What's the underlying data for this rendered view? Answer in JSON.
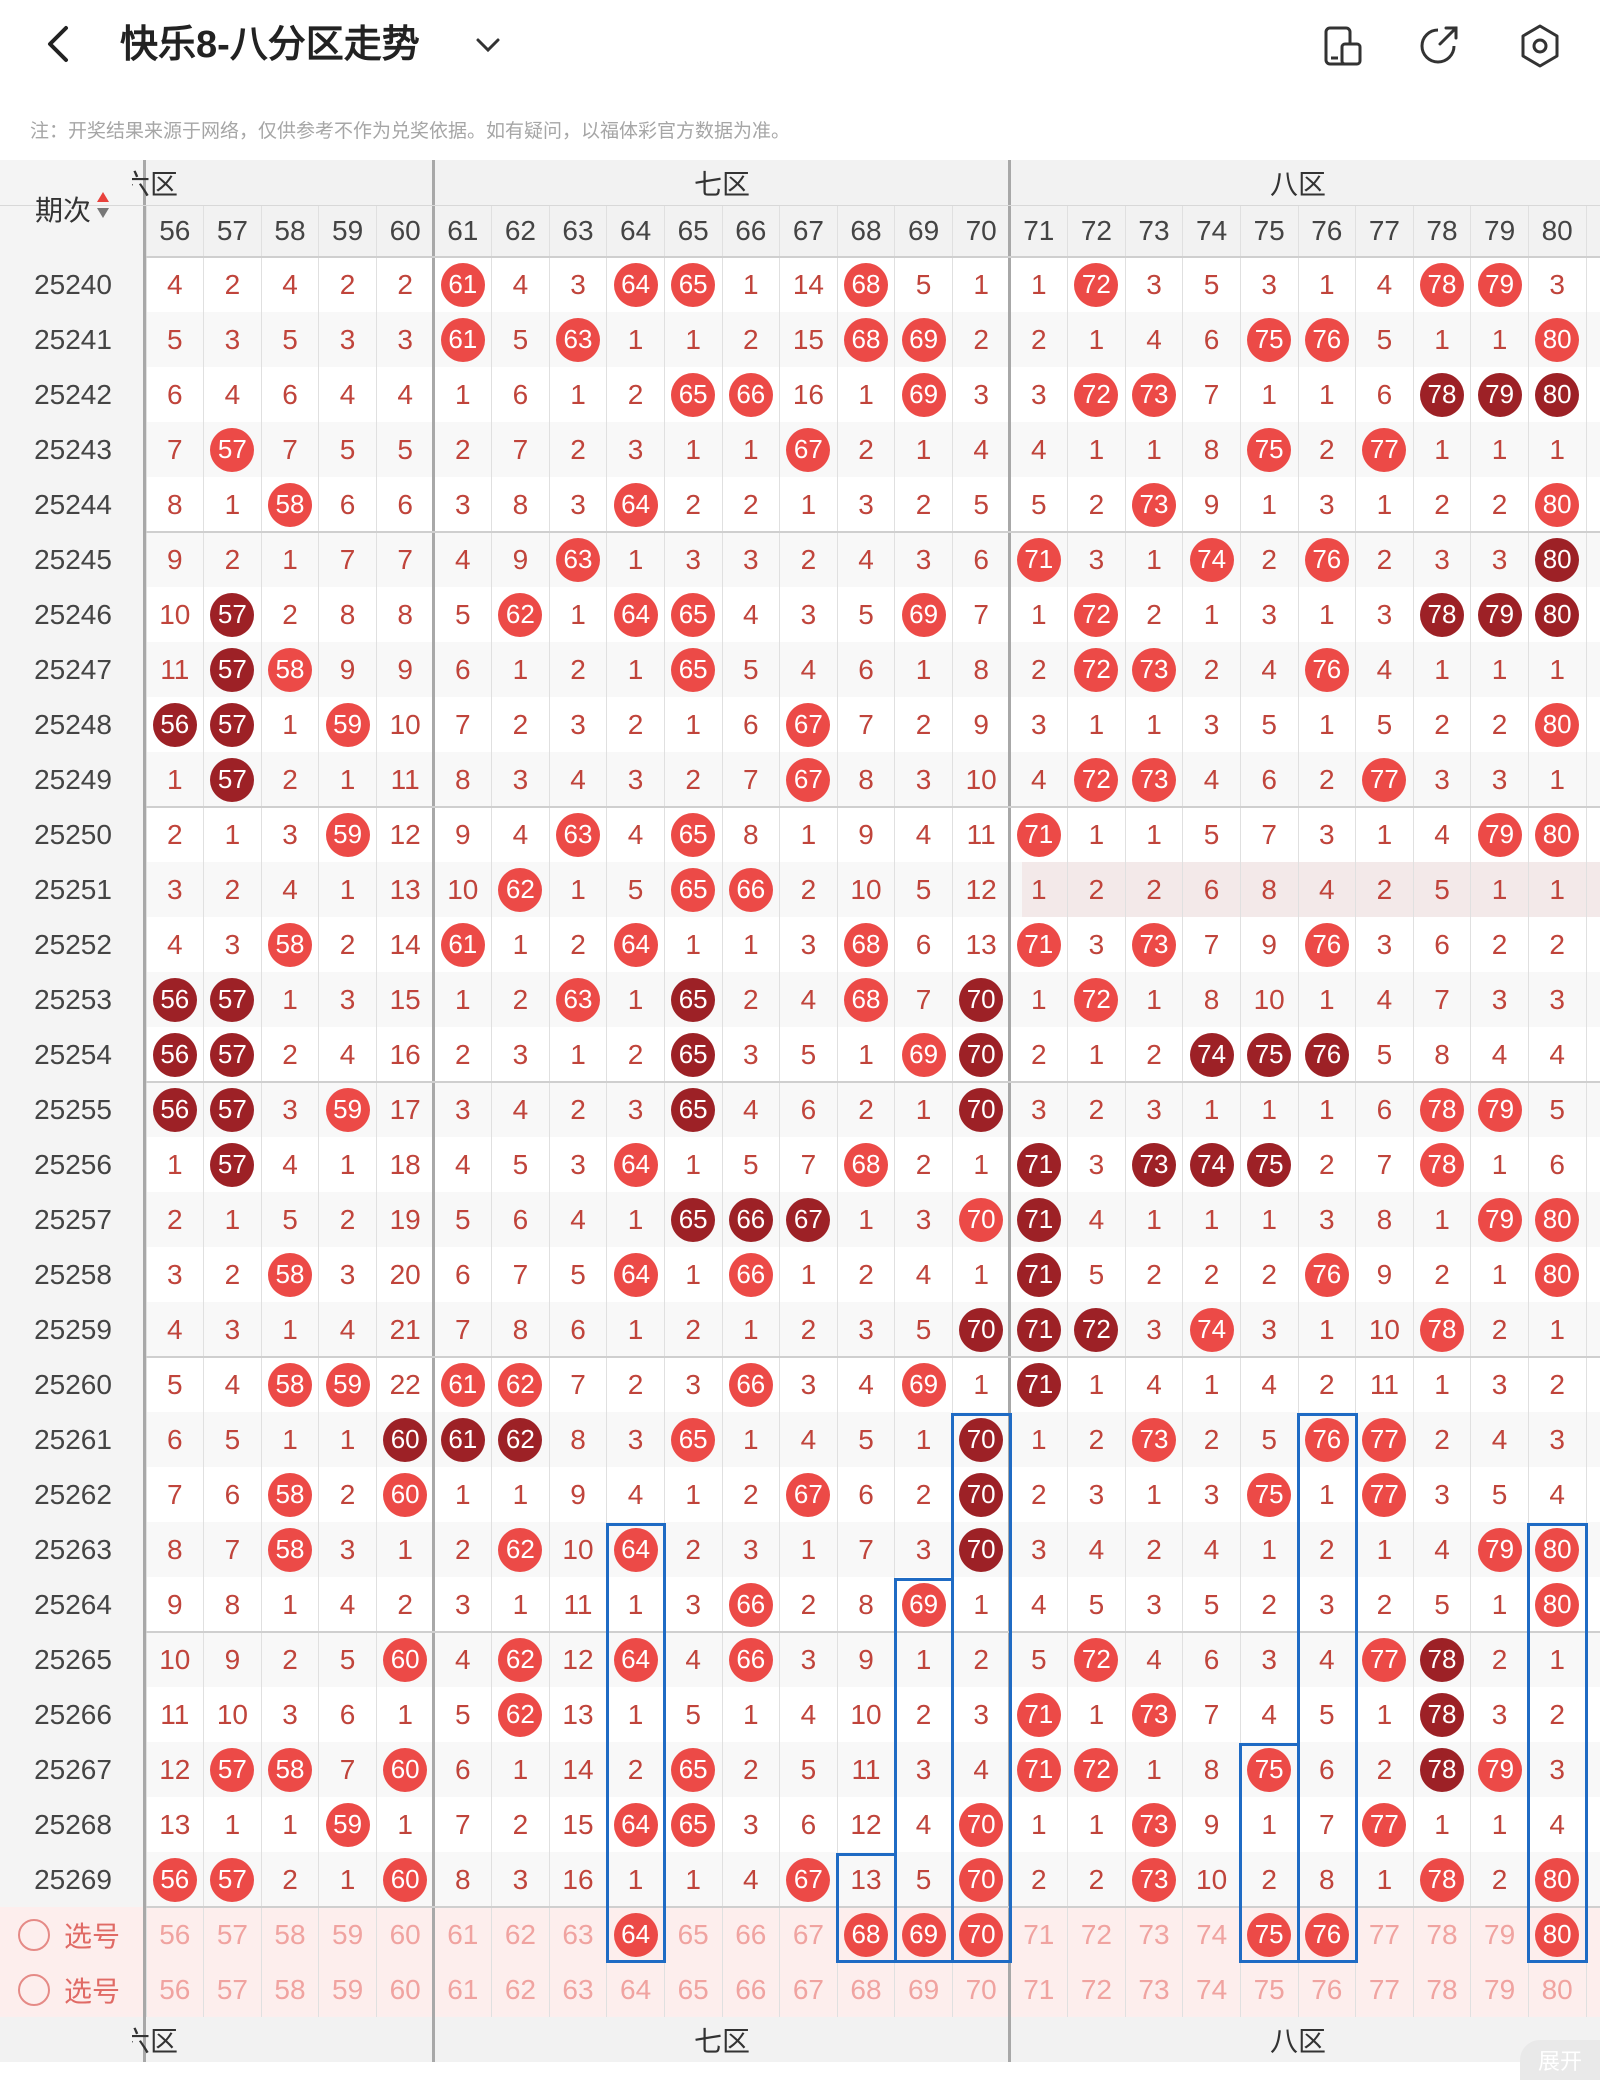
{
  "header": {
    "title": "快乐8-八分区走势",
    "back_icon": "back-arrow-icon",
    "dropdown_icon": "chevron-down-icon",
    "icons": [
      "device-toggle-icon",
      "share-icon",
      "settings-icon"
    ]
  },
  "note": "注：开奖结果来源于网络，仅供参考不作为兑奖依据。如有疑问，以福体彩官方数据为准。",
  "colors": {
    "red_ball": "#ec4a47",
    "dark_ball": "#9d2126",
    "miss_text": "#c0443b",
    "highlight": "#1f6bc4",
    "select_bg": "#fdeeed"
  },
  "table": {
    "period_header": "期次",
    "zones_top": [
      {
        "label": "六区",
        "shown": "六区"
      },
      {
        "label": "七区"
      },
      {
        "label": "八区"
      }
    ],
    "zone_top_texts": [
      "六区",
      "七区",
      "八区"
    ],
    "zone_bottom_texts": [
      "六区",
      "七区",
      "八区"
    ],
    "columns": [
      "56",
      "57",
      "58",
      "59",
      "60",
      "61",
      "62",
      "63",
      "64",
      "65",
      "66",
      "67",
      "68",
      "69",
      "70",
      "71",
      "72",
      "73",
      "74",
      "75",
      "76",
      "77",
      "78",
      "79",
      "80"
    ],
    "rows": [
      {
        "period": "25240",
        "cells": [
          "4",
          "2",
          "4",
          "2",
          "2",
          "61r",
          "4",
          "3",
          "64r",
          "65r",
          "1",
          "14",
          "68r",
          "5",
          "1",
          "1",
          "72r",
          "3",
          "5",
          "3",
          "1",
          "4",
          "78r",
          "79r",
          "3"
        ]
      },
      {
        "period": "25241",
        "cells": [
          "5",
          "3",
          "5",
          "3",
          "3",
          "61r",
          "5",
          "63r",
          "1",
          "1",
          "2",
          "15",
          "68r",
          "69r",
          "2",
          "2",
          "1",
          "4",
          "6",
          "75r",
          "76r",
          "5",
          "1",
          "1",
          "80r"
        ]
      },
      {
        "period": "25242",
        "cells": [
          "6",
          "4",
          "6",
          "4",
          "4",
          "1",
          "6",
          "1",
          "2",
          "65r",
          "66r",
          "16",
          "1",
          "69r",
          "3",
          "3",
          "72r",
          "73r",
          "7",
          "1",
          "1",
          "6",
          "78d",
          "79d",
          "80d"
        ]
      },
      {
        "period": "25243",
        "cells": [
          "7",
          "57r",
          "7",
          "5",
          "5",
          "2",
          "7",
          "2",
          "3",
          "1",
          "1",
          "67r",
          "2",
          "1",
          "4",
          "4",
          "1",
          "1",
          "8",
          "75r",
          "2",
          "77r",
          "1",
          "1",
          "1"
        ]
      },
      {
        "period": "25244",
        "cells": [
          "8",
          "1",
          "58r",
          "6",
          "6",
          "3",
          "8",
          "3",
          "64r",
          "2",
          "2",
          "1",
          "3",
          "2",
          "5",
          "5",
          "2",
          "73r",
          "9",
          "1",
          "3",
          "1",
          "2",
          "2",
          "80r"
        ]
      },
      {
        "period": "25245",
        "cells": [
          "9",
          "2",
          "1",
          "7",
          "7",
          "4",
          "9",
          "63r",
          "1",
          "3",
          "3",
          "2",
          "4",
          "3",
          "6",
          "71r",
          "3",
          "1",
          "74r",
          "2",
          "76r",
          "2",
          "3",
          "3",
          "80d"
        ]
      },
      {
        "period": "25246",
        "cells": [
          "10",
          "57d",
          "2",
          "8",
          "8",
          "5",
          "62r",
          "1",
          "64r",
          "65r",
          "4",
          "3",
          "5",
          "69r",
          "7",
          "1",
          "72r",
          "2",
          "1",
          "3",
          "1",
          "3",
          "78d",
          "79d",
          "80d"
        ]
      },
      {
        "period": "25247",
        "cells": [
          "11",
          "57d",
          "58r",
          "9",
          "9",
          "6",
          "1",
          "2",
          "1",
          "65r",
          "5",
          "4",
          "6",
          "1",
          "8",
          "2",
          "72r",
          "73r",
          "2",
          "4",
          "76r",
          "4",
          "1",
          "1",
          "1"
        ]
      },
      {
        "period": "25248",
        "cells": [
          "56d",
          "57d",
          "1",
          "59r",
          "10",
          "7",
          "2",
          "3",
          "2",
          "1",
          "6",
          "67r",
          "7",
          "2",
          "9",
          "3",
          "1",
          "1",
          "3",
          "5",
          "1",
          "5",
          "2",
          "2",
          "80r"
        ]
      },
      {
        "period": "25249",
        "cells": [
          "1",
          "57d",
          "2",
          "1",
          "11",
          "8",
          "3",
          "4",
          "3",
          "2",
          "7",
          "67r",
          "8",
          "3",
          "10",
          "4",
          "72r",
          "73r",
          "4",
          "6",
          "2",
          "77r",
          "3",
          "3",
          "1"
        ]
      },
      {
        "period": "25250",
        "cells": [
          "2",
          "1",
          "3",
          "59r",
          "12",
          "9",
          "4",
          "63r",
          "4",
          "65r",
          "8",
          "1",
          "9",
          "4",
          "11",
          "71r",
          "1",
          "1",
          "5",
          "7",
          "3",
          "1",
          "4",
          "79r",
          "80r"
        ]
      },
      {
        "period": "25251",
        "cells": [
          "3",
          "2",
          "4",
          "1",
          "13",
          "10",
          "62r",
          "1",
          "5",
          "65r",
          "66r",
          "2",
          "10",
          "5",
          "12",
          "1",
          "2",
          "2",
          "6",
          "8",
          "4",
          "2",
          "5",
          "1",
          "1"
        ]
      },
      {
        "period": "25252",
        "cells": [
          "4",
          "3",
          "58r",
          "2",
          "14",
          "61r",
          "1",
          "2",
          "64r",
          "1",
          "1",
          "3",
          "68r",
          "6",
          "13",
          "71r",
          "3",
          "73r",
          "7",
          "9",
          "76r",
          "3",
          "6",
          "2",
          "2"
        ]
      },
      {
        "period": "25253",
        "cells": [
          "56d",
          "57d",
          "1",
          "3",
          "15",
          "1",
          "2",
          "63r",
          "1",
          "65d",
          "2",
          "4",
          "68r",
          "7",
          "70d",
          "1",
          "72r",
          "1",
          "8",
          "10",
          "1",
          "4",
          "7",
          "3",
          "3"
        ]
      },
      {
        "period": "25254",
        "cells": [
          "56d",
          "57d",
          "2",
          "4",
          "16",
          "2",
          "3",
          "1",
          "2",
          "65d",
          "3",
          "5",
          "1",
          "69r",
          "70d",
          "2",
          "1",
          "2",
          "74d",
          "75d",
          "76d",
          "5",
          "8",
          "4",
          "4"
        ]
      },
      {
        "period": "25255",
        "cells": [
          "56d",
          "57d",
          "3",
          "59r",
          "17",
          "3",
          "4",
          "2",
          "3",
          "65d",
          "4",
          "6",
          "2",
          "1",
          "70d",
          "3",
          "2",
          "3",
          "1",
          "1",
          "1",
          "6",
          "78r",
          "79r",
          "5"
        ]
      },
      {
        "period": "25256",
        "cells": [
          "1",
          "57d",
          "4",
          "1",
          "18",
          "4",
          "5",
          "3",
          "64r",
          "1",
          "5",
          "7",
          "68r",
          "2",
          "1",
          "71d",
          "3",
          "73d",
          "74d",
          "75d",
          "2",
          "7",
          "78r",
          "1",
          "6"
        ]
      },
      {
        "period": "25257",
        "cells": [
          "2",
          "1",
          "5",
          "2",
          "19",
          "5",
          "6",
          "4",
          "1",
          "65d",
          "66d",
          "67d",
          "1",
          "3",
          "70r",
          "71d",
          "4",
          "1",
          "1",
          "1",
          "3",
          "8",
          "1",
          "79r",
          "80r"
        ]
      },
      {
        "period": "25258",
        "cells": [
          "3",
          "2",
          "58r",
          "3",
          "20",
          "6",
          "7",
          "5",
          "64r",
          "1",
          "66r",
          "1",
          "2",
          "4",
          "1",
          "71d",
          "5",
          "2",
          "2",
          "2",
          "76r",
          "9",
          "2",
          "1",
          "80r"
        ]
      },
      {
        "period": "25259",
        "cells": [
          "4",
          "3",
          "1",
          "4",
          "21",
          "7",
          "8",
          "6",
          "1",
          "2",
          "1",
          "2",
          "3",
          "5",
          "70d",
          "71d",
          "72d",
          "3",
          "74r",
          "3",
          "1",
          "10",
          "78r",
          "2",
          "1"
        ]
      },
      {
        "period": "25260",
        "cells": [
          "5",
          "4",
          "58r",
          "59r",
          "22",
          "61r",
          "62r",
          "7",
          "2",
          "3",
          "66r",
          "3",
          "4",
          "69r",
          "1",
          "71d",
          "1",
          "4",
          "1",
          "4",
          "2",
          "11",
          "1",
          "3",
          "2"
        ]
      },
      {
        "period": "25261",
        "cells": [
          "6",
          "5",
          "1",
          "1",
          "60d",
          "61d",
          "62d",
          "8",
          "3",
          "65r",
          "1",
          "4",
          "5",
          "1",
          "70d",
          "1",
          "2",
          "73r",
          "2",
          "5",
          "76r",
          "77r",
          "2",
          "4",
          "3"
        ]
      },
      {
        "period": "25262",
        "cells": [
          "7",
          "6",
          "58r",
          "2",
          "60r",
          "1",
          "1",
          "9",
          "4",
          "1",
          "2",
          "67r",
          "6",
          "2",
          "70d",
          "2",
          "3",
          "1",
          "3",
          "75r",
          "1",
          "77r",
          "3",
          "5",
          "4"
        ]
      },
      {
        "period": "25263",
        "cells": [
          "8",
          "7",
          "58r",
          "3",
          "1",
          "2",
          "62r",
          "10",
          "64r",
          "2",
          "3",
          "1",
          "7",
          "3",
          "70d",
          "3",
          "4",
          "2",
          "4",
          "1",
          "2",
          "1",
          "4",
          "79r",
          "80r"
        ]
      },
      {
        "period": "25264",
        "cells": [
          "9",
          "8",
          "1",
          "4",
          "2",
          "3",
          "1",
          "11",
          "1",
          "3",
          "66r",
          "2",
          "8",
          "69r",
          "1",
          "4",
          "5",
          "3",
          "5",
          "2",
          "3",
          "2",
          "5",
          "1",
          "80r"
        ]
      },
      {
        "period": "25265",
        "cells": [
          "10",
          "9",
          "2",
          "5",
          "60r",
          "4",
          "62r",
          "12",
          "64r",
          "4",
          "66r",
          "3",
          "9",
          "1",
          "2",
          "5",
          "72r",
          "4",
          "6",
          "3",
          "4",
          "77r",
          "78d",
          "2",
          "1"
        ]
      },
      {
        "period": "25266",
        "cells": [
          "11",
          "10",
          "3",
          "6",
          "1",
          "5",
          "62r",
          "13",
          "1",
          "5",
          "1",
          "4",
          "10",
          "2",
          "3",
          "71r",
          "1",
          "73r",
          "7",
          "4",
          "5",
          "1",
          "78d",
          "3",
          "2"
        ]
      },
      {
        "period": "25267",
        "cells": [
          "12",
          "57r",
          "58r",
          "7",
          "60r",
          "6",
          "1",
          "14",
          "2",
          "65r",
          "2",
          "5",
          "11",
          "3",
          "4",
          "71r",
          "72r",
          "1",
          "8",
          "75r",
          "6",
          "2",
          "78d",
          "79r",
          "3"
        ]
      },
      {
        "period": "25268",
        "cells": [
          "13",
          "1",
          "1",
          "59r",
          "1",
          "7",
          "2",
          "15",
          "64r",
          "65r",
          "3",
          "6",
          "12",
          "4",
          "70r",
          "1",
          "1",
          "73r",
          "9",
          "1",
          "7",
          "77r",
          "1",
          "1",
          "4"
        ]
      },
      {
        "period": "25269",
        "cells": [
          "56r",
          "57r",
          "2",
          "1",
          "60r",
          "8",
          "3",
          "16",
          "1",
          "1",
          "4",
          "67r",
          "13",
          "5",
          "70r",
          "2",
          "2",
          "73r",
          "10",
          "2",
          "8",
          "1",
          "78r",
          "2",
          "80r"
        ]
      }
    ],
    "select_rows": [
      {
        "label": "选号",
        "picked": [
          "64",
          "68",
          "69",
          "70",
          "75",
          "76",
          "80"
        ]
      },
      {
        "label": "选号",
        "picked": []
      }
    ],
    "expand_label": "展开"
  }
}
